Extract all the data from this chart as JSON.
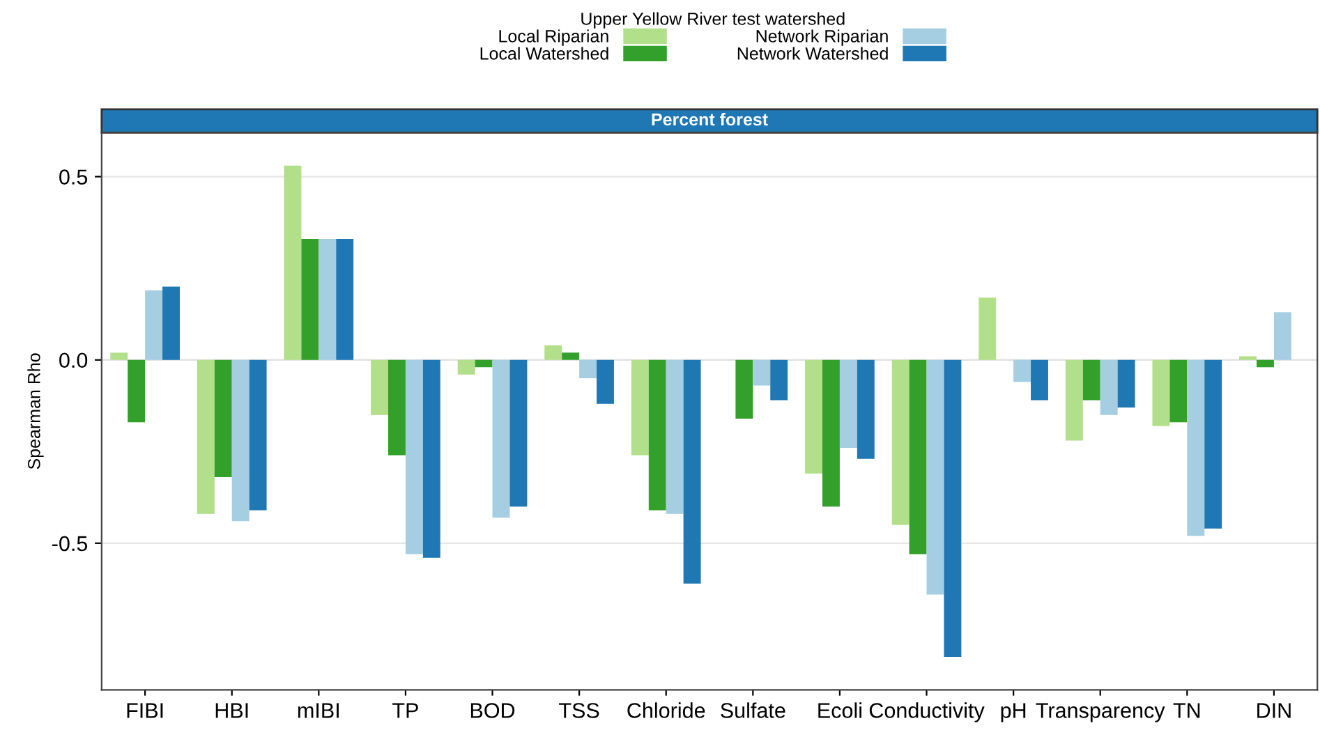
{
  "chart_data": {
    "type": "bar",
    "subtitle": "Percent forest",
    "ylabel": "Spearman Rho",
    "legend_title": "Upper Yellow River test watershed",
    "categories": [
      "FIBI",
      "HBI",
      "mIBI",
      "TP",
      "BOD",
      "TSS",
      "Chloride",
      "Sulfate",
      "Ecoli",
      "Conductivity",
      "pH",
      "Transparency",
      "TN",
      "DIN"
    ],
    "series": [
      {
        "name": "Local Riparian",
        "color": "#b2df8a",
        "values": [
          0.02,
          -0.42,
          0.53,
          -0.15,
          -0.04,
          0.04,
          -0.26,
          0,
          -0.31,
          -0.45,
          0.17,
          -0.22,
          -0.18,
          0.01
        ]
      },
      {
        "name": "Local Watershed",
        "color": "#33a02c",
        "values": [
          -0.17,
          -0.32,
          0.33,
          -0.26,
          -0.02,
          0.02,
          -0.41,
          -0.16,
          -0.4,
          -0.53,
          0,
          -0.11,
          -0.17,
          -0.02
        ]
      },
      {
        "name": "Network Riparian",
        "color": "#a6cee3",
        "values": [
          0.19,
          -0.44,
          0.33,
          -0.53,
          -0.43,
          -0.05,
          -0.42,
          -0.07,
          -0.24,
          -0.64,
          -0.06,
          -0.15,
          -0.48,
          0.13
        ]
      },
      {
        "name": "Network Watershed",
        "color": "#1f78b4",
        "values": [
          0.2,
          -0.41,
          0.33,
          -0.54,
          -0.4,
          -0.12,
          -0.61,
          -0.11,
          -0.27,
          -0.81,
          -0.11,
          -0.13,
          -0.46,
          0
        ]
      }
    ],
    "ylim": [
      -0.9,
      0.62
    ],
    "yticks": [
      {
        "value": -0.5,
        "label": "-0.5"
      },
      {
        "value": 0,
        "label": "0.0"
      },
      {
        "value": 0.5,
        "label": "0.5"
      }
    ],
    "grid": "y",
    "legend": "top"
  }
}
